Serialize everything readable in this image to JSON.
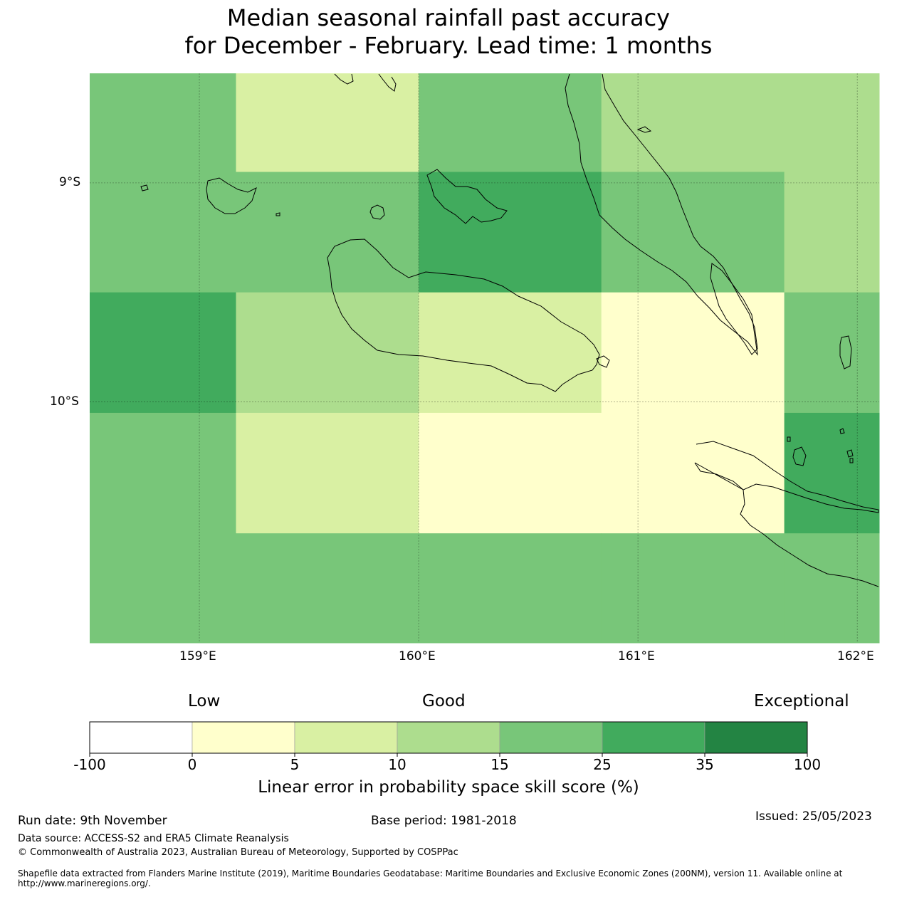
{
  "title": {
    "line1": "Median seasonal rainfall past accuracy",
    "line2": "for December - February. Lead time: 1 months"
  },
  "map": {
    "lat_labels": [
      "9°S",
      "10°S"
    ],
    "lon_labels": [
      "159°E",
      "160°E",
      "161°E",
      "162°E"
    ],
    "lon_range": [
      158.5,
      162.1
    ],
    "lat_range": [
      -8.5,
      -11.1
    ],
    "grid": {
      "lon_edges": [
        158.5,
        159.167,
        160.0,
        160.833,
        161.667,
        162.1
      ],
      "lat_edges": [
        -8.5,
        -8.95,
        -9.5,
        -10.05,
        -10.6,
        -11.1
      ],
      "skill_class": [
        [
          4,
          2,
          4,
          3,
          3
        ],
        [
          4,
          4,
          5,
          4,
          3
        ],
        [
          5,
          3,
          2,
          1,
          4
        ],
        [
          4,
          2,
          1,
          1,
          5
        ],
        [
          4,
          4,
          4,
          4,
          4
        ]
      ]
    },
    "colors": [
      "#ffffff",
      "#ffffcc",
      "#d9f0a3",
      "#addd8e",
      "#78c679",
      "#41ab5d",
      "#238443"
    ],
    "icon": "coastline-outline"
  },
  "colorbar": {
    "qualitative": [
      "Low",
      "Good",
      "Exceptional"
    ],
    "ticks": [
      "-100",
      "0",
      "5",
      "10",
      "15",
      "25",
      "35",
      "100"
    ],
    "label": "Linear error in probability space skill score (%)"
  },
  "footer": {
    "run_date": "Run date: 9th November",
    "base_period": "Base period: 1981-2018",
    "issued": "Issued: 25/05/2023",
    "data_source": "Data source: ACCESS-S2 and ERA5 Climate Reanalysis",
    "copyright": "© Commonwealth of Australia 2023, Australian Bureau of Meteorology, Supported by COSPPac",
    "shapefile": "Shapefile data extracted from Flanders Marine Institute (2019), Maritime Boundaries Geodatabase: Maritime Boundaries and Exclusive Economic Zones (200NM), version 11. Available online at http://www.marineregions.org/."
  }
}
